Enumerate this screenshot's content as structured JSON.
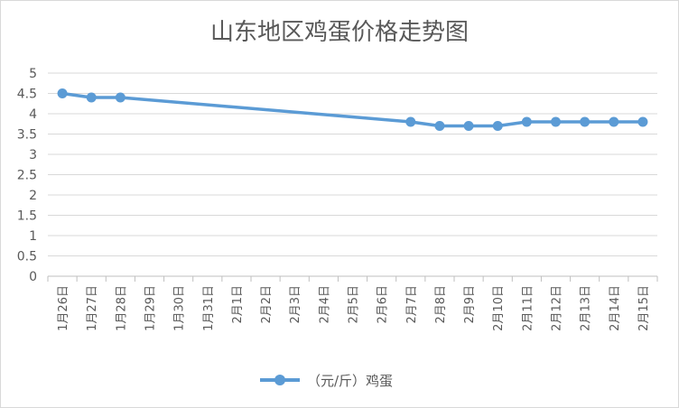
{
  "chart_data": {
    "type": "line",
    "title": "山东地区鸡蛋价格走势图",
    "categories": [
      "1月26日",
      "1月27日",
      "1月28日",
      "1月29日",
      "1月30日",
      "1月31日",
      "2月1日",
      "2月2日",
      "2月3日",
      "2月4日",
      "2月5日",
      "2月6日",
      "2月7日",
      "2月8日",
      "2月9日",
      "2月10日",
      "2月11日",
      "2月12日",
      "2月13日",
      "2月14日",
      "2月15日"
    ],
    "series": [
      {
        "name": "（元/斤）鸡蛋",
        "values": [
          4.5,
          4.4,
          4.4,
          null,
          null,
          null,
          null,
          null,
          null,
          null,
          null,
          null,
          3.8,
          3.7,
          3.7,
          3.7,
          3.8,
          3.8,
          3.8,
          3.8,
          3.8
        ],
        "color": "#5b9bd5"
      }
    ],
    "ylim": [
      0,
      5
    ],
    "yticks": [
      "0",
      "0.5",
      "1",
      "1.5",
      "2",
      "2.5",
      "3",
      "3.5",
      "4",
      "4.5",
      "5"
    ],
    "grid": true,
    "legend": "bottom"
  }
}
